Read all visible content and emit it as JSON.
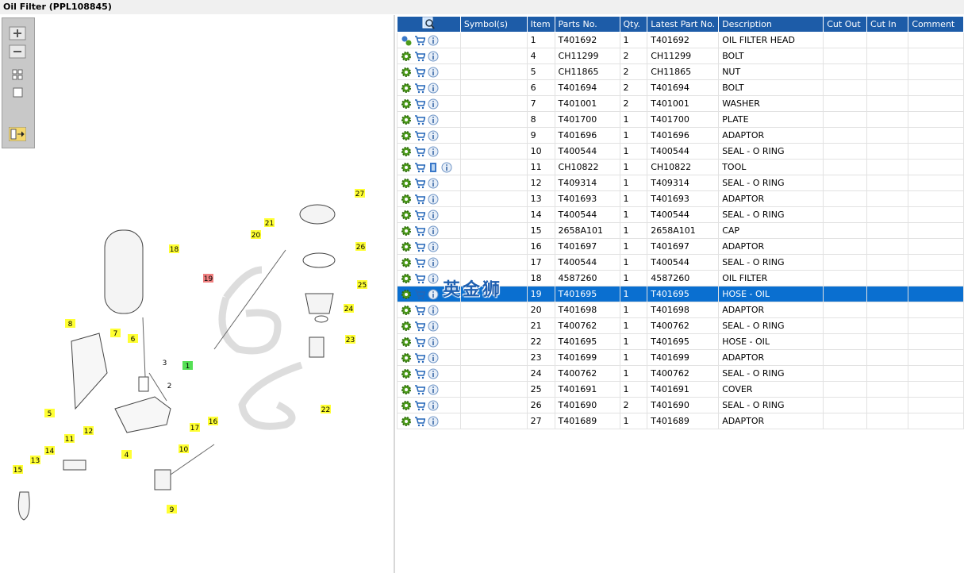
{
  "header": {
    "title": "Oil Filter (PPL108845)"
  },
  "table": {
    "columns": [
      "Symbol(s)",
      "Item",
      "Parts No.",
      "Qty.",
      "Latest Part No.",
      "Description",
      "Cut Out",
      "Cut In",
      "Comment"
    ],
    "rows": [
      [
        "1",
        "T401692",
        "1",
        "T401692",
        "OIL FILTER HEAD"
      ],
      [
        "4",
        "CH11299",
        "2",
        "CH11299",
        "BOLT"
      ],
      [
        "5",
        "CH11865",
        "2",
        "CH11865",
        "NUT"
      ],
      [
        "6",
        "T401694",
        "2",
        "T401694",
        "BOLT"
      ],
      [
        "7",
        "T401001",
        "2",
        "T401001",
        "WASHER"
      ],
      [
        "8",
        "T401700",
        "1",
        "T401700",
        "PLATE"
      ],
      [
        "9",
        "T401696",
        "1",
        "T401696",
        "ADAPTOR"
      ],
      [
        "10",
        "T400544",
        "1",
        "T400544",
        "SEAL - O RING"
      ],
      [
        "11",
        "CH10822",
        "1",
        "CH10822",
        "TOOL"
      ],
      [
        "12",
        "T409314",
        "1",
        "T409314",
        "SEAL - O RING"
      ],
      [
        "13",
        "T401693",
        "1",
        "T401693",
        "ADAPTOR"
      ],
      [
        "14",
        "T400544",
        "1",
        "T400544",
        "SEAL - O RING"
      ],
      [
        "15",
        "2658A101",
        "1",
        "2658A101",
        "CAP"
      ],
      [
        "16",
        "T401697",
        "1",
        "T401697",
        "ADAPTOR"
      ],
      [
        "17",
        "T400544",
        "1",
        "T400544",
        "SEAL - O RING"
      ],
      [
        "18",
        "4587260",
        "1",
        "4587260",
        "OIL FILTER"
      ],
      [
        "19",
        "T401695",
        "1",
        "T401695",
        "HOSE - OIL"
      ],
      [
        "20",
        "T401698",
        "1",
        "T401698",
        "ADAPTOR"
      ],
      [
        "21",
        "T400762",
        "1",
        "T400762",
        "SEAL - O RING"
      ],
      [
        "22",
        "T401695",
        "1",
        "T401695",
        "HOSE - OIL"
      ],
      [
        "23",
        "T401699",
        "1",
        "T401699",
        "ADAPTOR"
      ],
      [
        "24",
        "T400762",
        "1",
        "T400762",
        "SEAL - O RING"
      ],
      [
        "25",
        "T401691",
        "1",
        "T401691",
        "COVER"
      ],
      [
        "26",
        "T401690",
        "2",
        "T401690",
        "SEAL - O RING"
      ],
      [
        "27",
        "T401689",
        "1",
        "T401689",
        "ADAPTOR"
      ]
    ]
  },
  "diagram": {
    "callouts": [
      "1",
      "2",
      "3",
      "4",
      "5",
      "6",
      "7",
      "8",
      "9",
      "10",
      "11",
      "12",
      "13",
      "14",
      "15",
      "16",
      "17",
      "18",
      "19",
      "20",
      "21",
      "22",
      "23",
      "24",
      "25",
      "26",
      "27"
    ]
  },
  "watermark": "英金狮"
}
